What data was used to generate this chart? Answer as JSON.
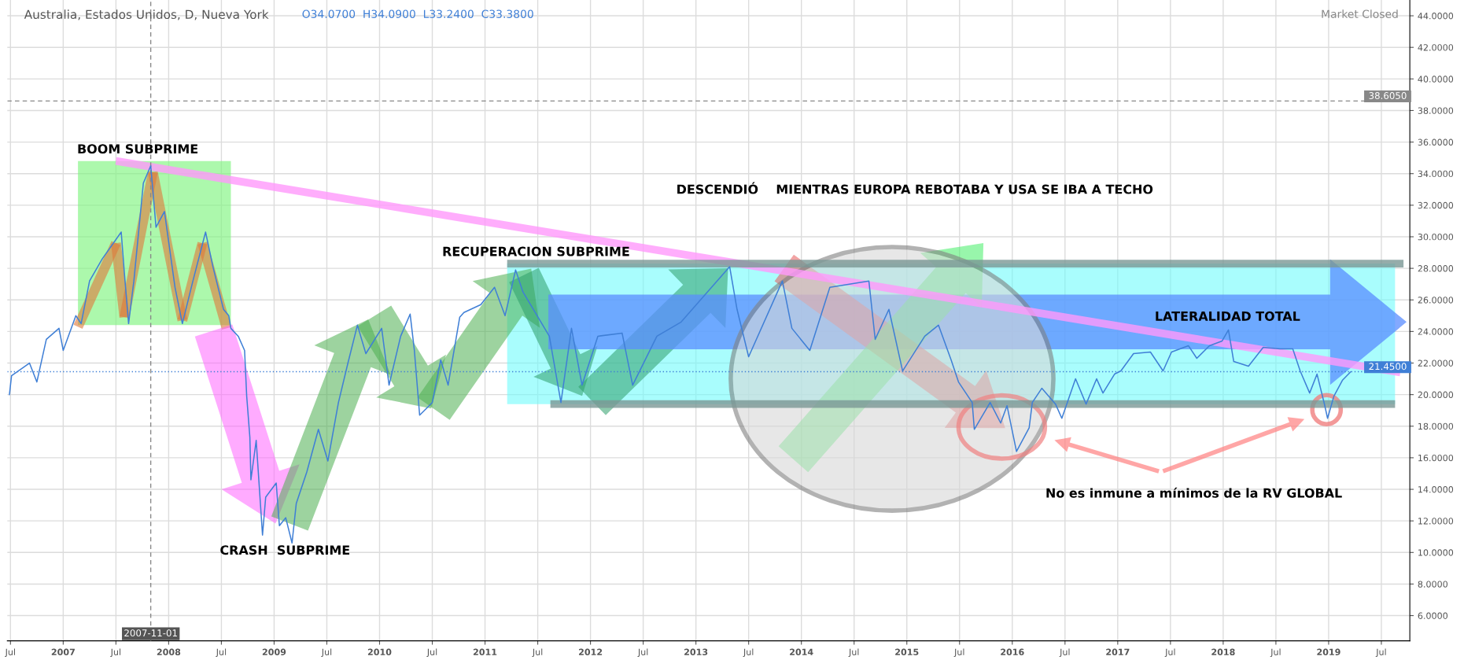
{
  "chart_data": {
    "type": "line",
    "title": "Australia, Estados Unidos, D, Nueva York",
    "series": [
      {
        "color": "#3f7fd6",
        "x": [
          2006.49,
          2006.51,
          2006.68,
          2006.75,
          2006.84,
          2006.96,
          2007.0,
          2007.12,
          2007.17,
          2007.25,
          2007.37,
          2007.55,
          2007.58,
          2007.62,
          2007.67,
          2007.76,
          2007.83,
          2007.88,
          2007.96,
          2008.06,
          2008.13,
          2008.23,
          2008.35,
          2008.42,
          2008.52,
          2008.57,
          2008.59,
          2008.66,
          2008.72,
          2008.74,
          2008.77,
          2008.78,
          2008.83,
          2008.89,
          2008.92,
          2009.02,
          2009.05,
          2009.11,
          2009.17,
          2009.21,
          2009.31,
          2009.42,
          2009.51,
          2009.61,
          2009.7,
          2009.79,
          2009.87,
          2010.02,
          2010.09,
          2010.2,
          2010.29,
          2010.33,
          2010.38,
          2010.5,
          2010.58,
          2010.65,
          2010.76,
          2010.8,
          2010.96,
          2011.09,
          2011.19,
          2011.29,
          2011.36,
          2011.61,
          2011.72,
          2011.82,
          2011.92,
          2012.07,
          2012.3,
          2012.4,
          2012.63,
          2012.86,
          2013.32,
          2013.39,
          2013.5,
          2013.82,
          2013.91,
          2014.08,
          2014.27,
          2014.64,
          2014.7,
          2014.83,
          2014.96,
          2015.17,
          2015.3,
          2015.42,
          2015.49,
          2015.62,
          2015.64,
          2015.79,
          2015.89,
          2015.95,
          2016.04,
          2016.16,
          2016.19,
          2016.28,
          2016.41,
          2016.47,
          2016.6,
          2016.7,
          2016.8,
          2016.86,
          2016.97,
          2017.03,
          2017.15,
          2017.31,
          2017.43,
          2017.51,
          2017.67,
          2017.75,
          2017.87,
          2017.99,
          2018.05,
          2018.1,
          2018.24,
          2018.38,
          2018.54,
          2018.66,
          2018.73,
          2018.82,
          2018.89,
          2018.96,
          2018.99,
          2019.05,
          2019.13,
          2019.21
        ],
        "values": [
          20.0,
          21.2,
          22.0,
          20.8,
          23.5,
          24.2,
          22.8,
          25.0,
          24.5,
          27.2,
          28.6,
          30.3,
          27.7,
          24.5,
          27.2,
          33.4,
          34.5,
          30.6,
          31.6,
          26.8,
          24.5,
          27.2,
          30.3,
          28.1,
          25.4,
          25.0,
          24.2,
          23.7,
          22.8,
          19.9,
          17.3,
          14.6,
          17.1,
          11.1,
          13.5,
          14.4,
          11.7,
          12.2,
          10.6,
          13.1,
          15.1,
          17.8,
          15.8,
          19.5,
          22.0,
          24.4,
          22.6,
          24.2,
          20.6,
          23.7,
          25.1,
          22.8,
          18.7,
          19.5,
          22.2,
          20.6,
          24.9,
          25.2,
          25.7,
          26.8,
          25.0,
          27.9,
          26.5,
          23.7,
          19.5,
          24.2,
          20.6,
          23.7,
          23.9,
          20.6,
          23.7,
          24.6,
          28.1,
          25.4,
          22.4,
          27.2,
          24.2,
          22.8,
          26.8,
          27.2,
          23.5,
          25.4,
          21.5,
          23.7,
          24.4,
          22.2,
          20.8,
          19.5,
          17.8,
          19.5,
          18.2,
          19.3,
          16.4,
          17.9,
          19.5,
          20.4,
          19.4,
          18.5,
          21.0,
          19.4,
          21.0,
          20.1,
          21.3,
          21.5,
          22.6,
          22.7,
          21.5,
          22.7,
          23.1,
          22.3,
          23.1,
          23.4,
          24.1,
          22.1,
          21.8,
          23.0,
          22.9,
          22.9,
          21.5,
          20.1,
          21.3,
          19.4,
          18.5,
          19.9,
          20.9,
          21.45
        ]
      },
      {
        "color": "#ff99fb",
        "x": [
          2007.5,
          2019.68
        ],
        "values": [
          34.8,
          21.4
        ]
      },
      {
        "color": "#7a9795",
        "x": [
          2011.21,
          2019.71
        ],
        "values": [
          28.3,
          28.3
        ]
      },
      {
        "color": "#7a9795",
        "x": [
          2011.62,
          2019.63
        ],
        "values": [
          19.4,
          19.4
        ]
      }
    ],
    "xlim": [
      2006.47,
      2019.77
    ],
    "ylim": [
      4.4,
      45
    ],
    "xticks": [
      {
        "value": 2006.5,
        "label": "Jul"
      },
      {
        "value": 2007,
        "label": "2007"
      },
      {
        "value": 2007.5,
        "label": "Jul"
      },
      {
        "value": 2008,
        "label": "2008"
      },
      {
        "value": 2008.5,
        "label": "Jul"
      },
      {
        "value": 2009,
        "label": "2009"
      },
      {
        "value": 2009.5,
        "label": "Jul"
      },
      {
        "value": 2010,
        "label": "2010"
      },
      {
        "value": 2010.5,
        "label": "Jul"
      },
      {
        "value": 2011,
        "label": "2011"
      },
      {
        "value": 2011.5,
        "label": "Jul"
      },
      {
        "value": 2012,
        "label": "2012"
      },
      {
        "value": 2012.5,
        "label": "Jul"
      },
      {
        "value": 2013,
        "label": "2013"
      },
      {
        "value": 2013.5,
        "label": "Jul"
      },
      {
        "value": 2014,
        "label": "2014"
      },
      {
        "value": 2014.5,
        "label": "Jul"
      },
      {
        "value": 2015,
        "label": "2015"
      },
      {
        "value": 2015.5,
        "label": "Jul"
      },
      {
        "value": 2016,
        "label": "2016"
      },
      {
        "value": 2016.5,
        "label": "Jul"
      },
      {
        "value": 2017,
        "label": "2017"
      },
      {
        "value": 2017.5,
        "label": "Jul"
      },
      {
        "value": 2018,
        "label": "2018"
      },
      {
        "value": 2018.5,
        "label": "Jul"
      },
      {
        "value": 2019,
        "label": "2019"
      },
      {
        "value": 2019.5,
        "label": "Jul"
      }
    ],
    "yticks": [
      {
        "value": 6,
        "label": "6.0000"
      },
      {
        "value": 8,
        "label": "8.0000"
      },
      {
        "value": 10,
        "label": "10.0000"
      },
      {
        "value": 12,
        "label": "12.0000"
      },
      {
        "value": 14,
        "label": "14.0000"
      },
      {
        "value": 16,
        "label": "16.0000"
      },
      {
        "value": 18,
        "label": "18.0000"
      },
      {
        "value": 20,
        "label": "20.0000"
      },
      {
        "value": 22,
        "label": "22.0000"
      },
      {
        "value": 24,
        "label": "24.0000"
      },
      {
        "value": 26,
        "label": "26.0000"
      },
      {
        "value": 28,
        "label": "28.0000"
      },
      {
        "value": 30,
        "label": "30.0000"
      },
      {
        "value": 32,
        "label": "32.0000"
      },
      {
        "value": 34,
        "label": "34.0000"
      },
      {
        "value": 36,
        "label": "36.0000"
      },
      {
        "value": 38,
        "label": "38.0000"
      },
      {
        "value": 40,
        "label": "40.0000"
      },
      {
        "value": 42,
        "label": "42.0000"
      },
      {
        "value": 44,
        "label": "44.0000"
      }
    ],
    "grid": true,
    "ref_lines": [
      {
        "axis": "y",
        "value": 38.605,
        "label": "38.6050",
        "color": "#888888",
        "line_style": "dashed"
      },
      {
        "axis": "y",
        "value": 21.45,
        "label": "21.4500",
        "color": "#3f7fd6",
        "line_style": "dotted"
      },
      {
        "axis": "x",
        "value": 2007.83,
        "color": "#888888",
        "line_style": "dashed"
      }
    ],
    "annotations": [
      "O34.0700  H34.0900  L33.2400  C33.3800",
      "Market Closed",
      "BOOM SUBPRIME",
      "CRASH  SUBPRIME",
      "RECUPERACION SUBPRIME",
      "DESCENDIÓ    MIENTRAS EUROPA REBOTABA Y USA SE IBA A TECHO",
      "LATERALIDAD TOTAL",
      "No es inmune a mínimos de la RV GLOBAL",
      "2007-11-01"
    ]
  }
}
